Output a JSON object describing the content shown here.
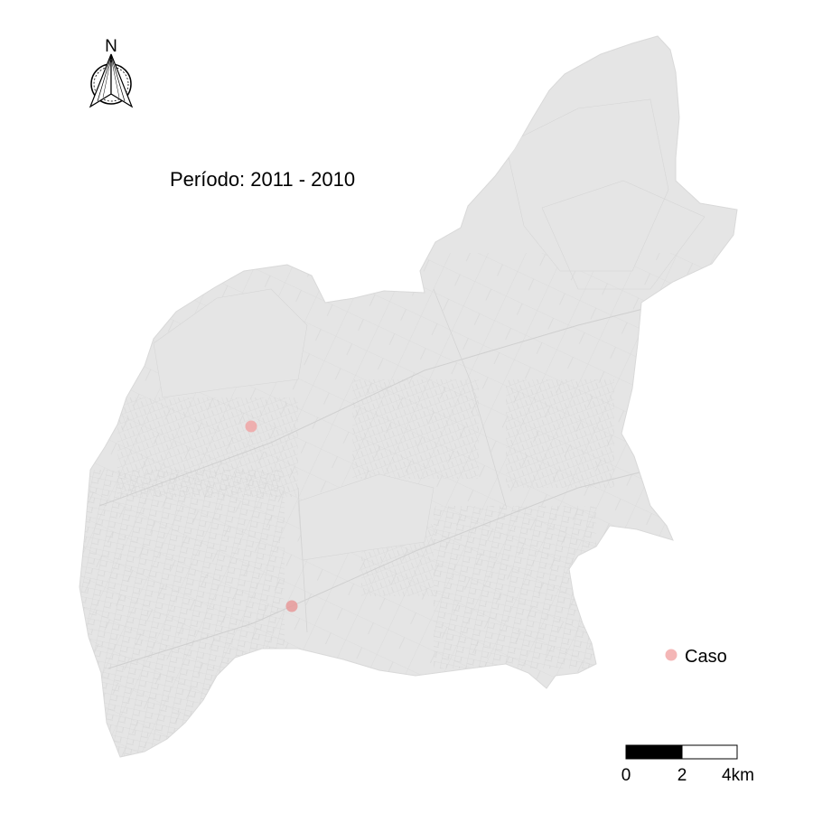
{
  "map": {
    "title": "Período: 2011 - 2010",
    "north_label": "N",
    "region_fill": "#e5e5e5",
    "boundary_color": "#cfcfcf"
  },
  "cases": [
    {
      "lat_rel": "upper-west",
      "label": "case-1"
    },
    {
      "lat_rel": "south-west",
      "label": "case-2"
    }
  ],
  "legend": {
    "items": [
      {
        "label": "Caso",
        "color": "#f4b6b6"
      }
    ]
  },
  "scale_bar": {
    "ticks": [
      "0",
      "2",
      "4km"
    ],
    "colors": [
      "#000000",
      "#ffffff"
    ]
  }
}
